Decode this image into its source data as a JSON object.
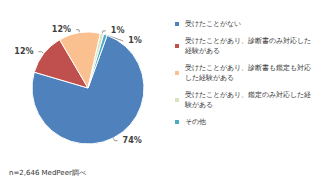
{
  "chart_data": {
    "type": "pie",
    "categories": [
      "受けたことがない",
      "受けたことがあり、診断書のみ対応した経験がある",
      "受けたことがあり、診断書も鑑定も対応した経験がある",
      "受けたことがあり、鑑定のみ対応した経験がある",
      "その他"
    ],
    "values": [
      74,
      12,
      12,
      1,
      1
    ],
    "value_labels": [
      "74%",
      "12%",
      "12%",
      "1%",
      "1%"
    ],
    "colors": [
      "#4f81bd",
      "#c0504d",
      "#fac090",
      "#d7e4bd",
      "#4bacc6"
    ],
    "data_labels": true,
    "legend": "right",
    "annotations": [
      "n=2,646 MedPeer調べ"
    ]
  }
}
